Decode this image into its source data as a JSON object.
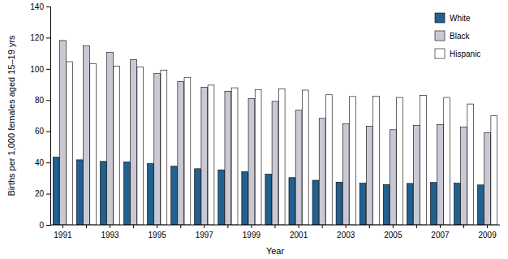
{
  "chart_data": {
    "type": "bar",
    "x_label": "Year",
    "y_label": "Births per 1,000 females aged 15–19 yrs",
    "categories": [
      "1991",
      null,
      "1993",
      null,
      "1995",
      null,
      "1997",
      null,
      "1999",
      null,
      "2001",
      null,
      "2003",
      null,
      "2005",
      null,
      "2007",
      null,
      "2009"
    ],
    "series": [
      {
        "name": "White",
        "color": "#22608f",
        "values": [
          43.4,
          41.7,
          40.7,
          40.4,
          39.3,
          37.6,
          36.0,
          35.3,
          34.1,
          32.6,
          30.3,
          28.6,
          27.4,
          26.7,
          25.9,
          26.6,
          27.2,
          26.7,
          25.6
        ]
      },
      {
        "name": "Black",
        "color": "#c9c9d6",
        "values": [
          118.2,
          114.7,
          110.5,
          105.9,
          97.2,
          91.9,
          88.3,
          85.7,
          81.0,
          79.2,
          73.5,
          68.3,
          64.7,
          63.3,
          61.0,
          63.7,
          64.3,
          62.8,
          59.0
        ]
      },
      {
        "name": "Hispanic",
        "color": "#ffffff",
        "values": [
          104.6,
          103.3,
          101.8,
          101.3,
          99.3,
          94.6,
          89.6,
          87.9,
          86.8,
          87.3,
          86.4,
          83.4,
          82.3,
          82.6,
          81.7,
          83.0,
          81.7,
          77.5,
          70.1
        ]
      }
    ],
    "ylim": [
      0,
      140
    ],
    "yticks": [
      0,
      20,
      40,
      60,
      80,
      100,
      120,
      140
    ],
    "grid": false,
    "legend": "top-right"
  }
}
